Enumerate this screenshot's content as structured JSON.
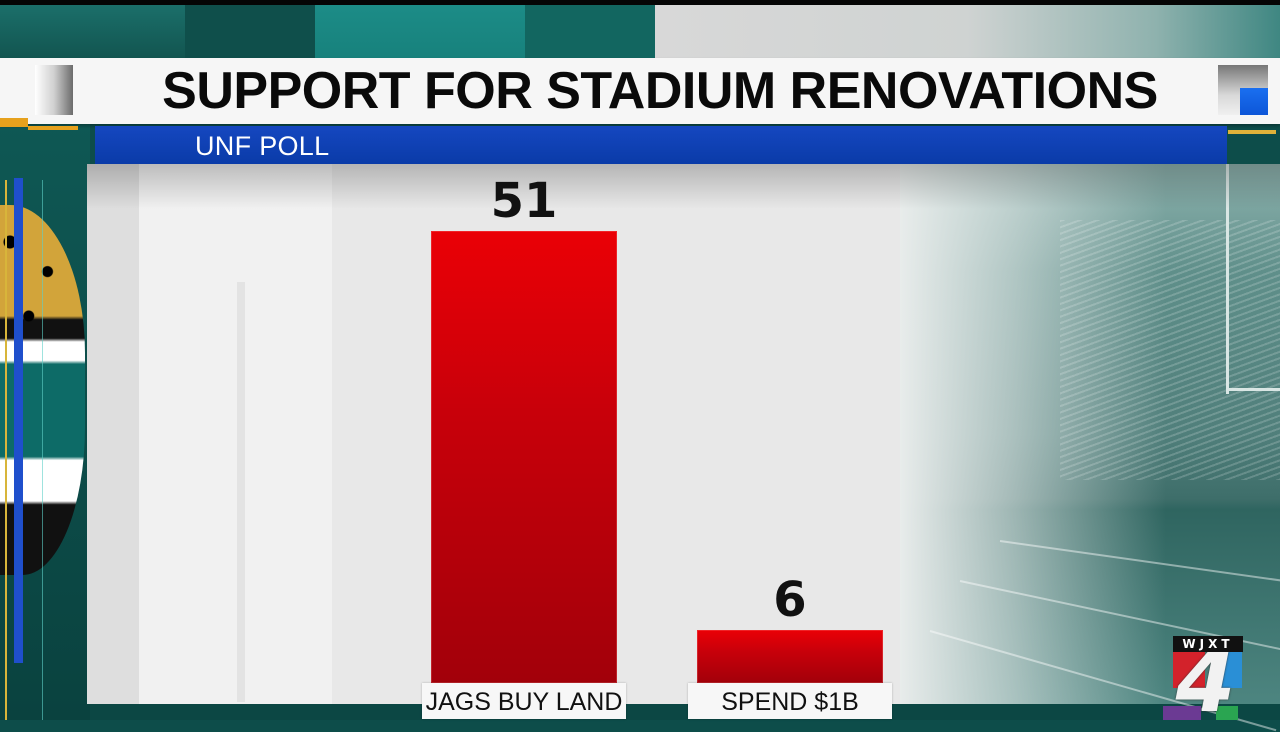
{
  "header": {
    "title": "SUPPORT FOR STADIUM RENOVATIONS",
    "subtitle": "UNF POLL"
  },
  "station_logo": {
    "call_letters": "WJXT",
    "channel": "4"
  },
  "colors": {
    "bar_red": "#d8000a",
    "subtitle_blue": "#0f40b4",
    "title_bg": "#f6f6f6",
    "accent_gold": "#e6a11d",
    "teal_background": "#0d4d4a"
  },
  "chart_data": {
    "type": "bar",
    "title": "SUPPORT FOR STADIUM RENOVATIONS",
    "subtitle": "UNF POLL",
    "categories": [
      "JAGS BUY LAND",
      "SPEND $1B"
    ],
    "values": [
      51,
      6
    ],
    "data_labels": [
      "51",
      "6"
    ],
    "xlabel": "",
    "ylabel": "",
    "ylim": [
      0,
      51
    ],
    "grid": false,
    "legend": null
  }
}
